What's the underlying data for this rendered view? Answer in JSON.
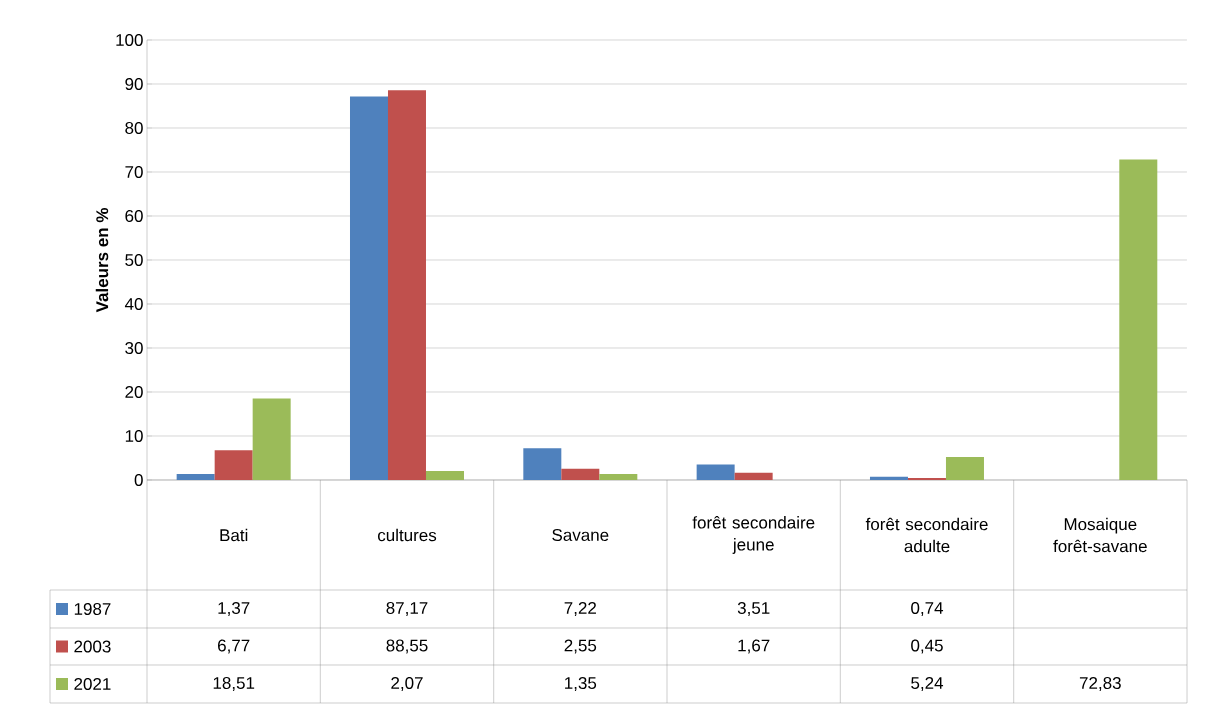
{
  "chart_data": {
    "type": "bar",
    "ylabel": "Valeurs en %",
    "categories": [
      "Bati",
      "cultures",
      "Savane",
      "forêt secondaire jeune",
      "forêt secondaire adulte",
      "Mosaique forêt-savane"
    ],
    "series": [
      {
        "name": "1987",
        "color": "#4f81bd",
        "values": [
          1.37,
          87.17,
          7.22,
          3.51,
          0.74,
          null
        ],
        "value_labels": [
          "1,37",
          "87,17",
          "7,22",
          "3,51",
          "0,74",
          null
        ]
      },
      {
        "name": "2003",
        "color": "#c0504d",
        "values": [
          6.77,
          88.55,
          2.55,
          1.67,
          0.45,
          null
        ],
        "value_labels": [
          "6,77",
          "88,55",
          "2,55",
          "1,67",
          "0,45",
          null
        ]
      },
      {
        "name": "2021",
        "color": "#9bbb59",
        "values": [
          18.51,
          2.07,
          1.35,
          null,
          5.24,
          72.83
        ],
        "value_labels": [
          "18,51",
          "2,07",
          "1,35",
          null,
          "5,24",
          "72,83"
        ]
      }
    ],
    "ylim": [
      0,
      100
    ],
    "yticks": [
      0,
      10,
      20,
      30,
      40,
      50,
      60,
      70,
      80,
      90,
      100
    ],
    "grid": "y",
    "legend": "bottom left"
  }
}
